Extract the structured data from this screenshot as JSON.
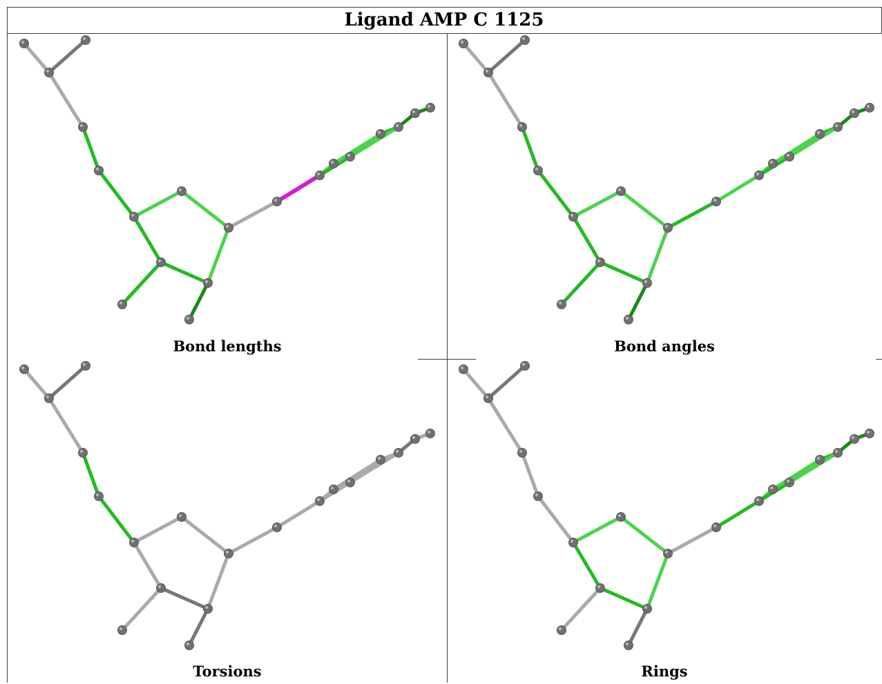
{
  "title": "Ligand AMP C 1125",
  "panels": [
    {
      "caption": "Bond lengths",
      "scheme": "lengths"
    },
    {
      "caption": "Bond angles",
      "scheme": "angles"
    },
    {
      "caption": "Torsions",
      "scheme": "torsions"
    },
    {
      "caption": "Rings",
      "scheme": "rings"
    }
  ],
  "colors": {
    "grey_bond": "#aaaaaa",
    "dark_grey_bond": "#777777",
    "light_green": "#4cd34c",
    "green": "#22bb22",
    "dark_green": "#158c15",
    "outlier": "#d21ed2",
    "atom": "#707070"
  }
}
